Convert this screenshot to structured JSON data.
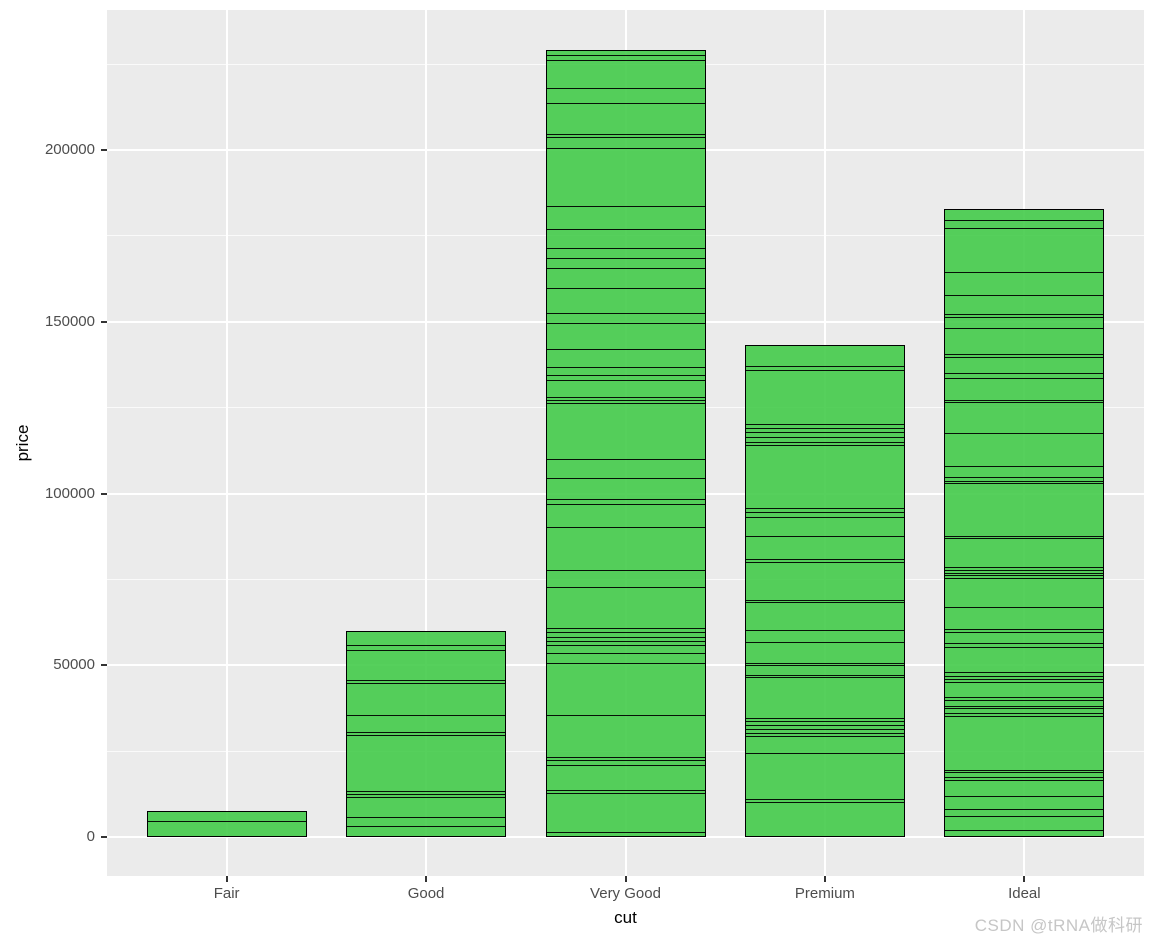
{
  "watermark": {
    "text": "CSDN @tRNA做科研"
  },
  "colors": {
    "panel_background": "#EBEBEB",
    "gridline": "#FFFFFF",
    "bar_fill": "rgba(68,203,74,0.9)",
    "bar_outline": "#000000",
    "tick_label": "#4D4D4D",
    "axis_title": "#000000",
    "watermark": "#C6C6C6"
  },
  "chart_data": {
    "type": "bar",
    "subtype": "stacked_bar_of_individual_observations",
    "title": "",
    "xlabel": "cut",
    "ylabel": "price",
    "categories": [
      "Fair",
      "Good",
      "Very Good",
      "Premium",
      "Ideal"
    ],
    "values": [
      7600,
      60000,
      229200,
      143300,
      182900
    ],
    "y_ticks": [
      0,
      50000,
      100000,
      150000,
      200000
    ],
    "y_minor_ticks": [
      25000,
      75000,
      125000,
      175000,
      225000
    ],
    "ylim": [
      -11360,
      240800
    ],
    "grid": "white major+minor horizontal lines, white major vertical lines on grey panel",
    "legend": "none",
    "series": [
      {
        "category": "Fair",
        "total": 7600,
        "separators": [
          4700
        ]
      },
      {
        "category": "Good",
        "total": 60000,
        "separators": [
          3200,
          5820,
          11650,
          12520,
          13400,
          29700,
          30580,
          35530,
          44850,
          45720,
          54450,
          55910
        ]
      },
      {
        "category": "Very Good",
        "total": 229200,
        "separators": [
          1460,
          12810,
          13690,
          20960,
          22420,
          23290,
          35520,
          50660,
          53570,
          55900,
          57070,
          58230,
          59690,
          60850,
          72790,
          77740,
          90260,
          96960,
          98420,
          104530,
          110060,
          126370,
          127240,
          128120,
          133070,
          134520,
          136850,
          142100,
          149670,
          152580,
          159860,
          165680,
          168600,
          171500,
          177040,
          183740,
          200630,
          203840,
          204700,
          213700,
          218100,
          226250,
          227700
        ]
      },
      {
        "category": "Premium",
        "total": 143300,
        "separators": [
          10190,
          11070,
          24460,
          29410,
          30280,
          31450,
          32610,
          33780,
          34650,
          46590,
          47170,
          50080,
          50660,
          56780,
          60270,
          68430,
          69010,
          80070,
          80950,
          87640,
          93180,
          94630,
          95800,
          114150,
          115030,
          116480,
          117940,
          119110,
          120270,
          136000,
          137160
        ]
      },
      {
        "category": "Ideal",
        "total": 182900,
        "separators": [
          2040,
          6110,
          8150,
          11940,
          16600,
          17470,
          18930,
          19510,
          35230,
          36100,
          37560,
          38140,
          39890,
          40770,
          45130,
          46000,
          46880,
          48040,
          55320,
          56490,
          59690,
          60560,
          66970,
          75420,
          76290,
          76870,
          77740,
          78620,
          87060,
          87650,
          103080,
          103670,
          104830,
          108040,
          117650,
          126660,
          127240,
          133660,
          135110,
          139770,
          140650,
          148220,
          151420,
          152290,
          157830,
          164530,
          177340,
          179670
        ]
      }
    ]
  }
}
